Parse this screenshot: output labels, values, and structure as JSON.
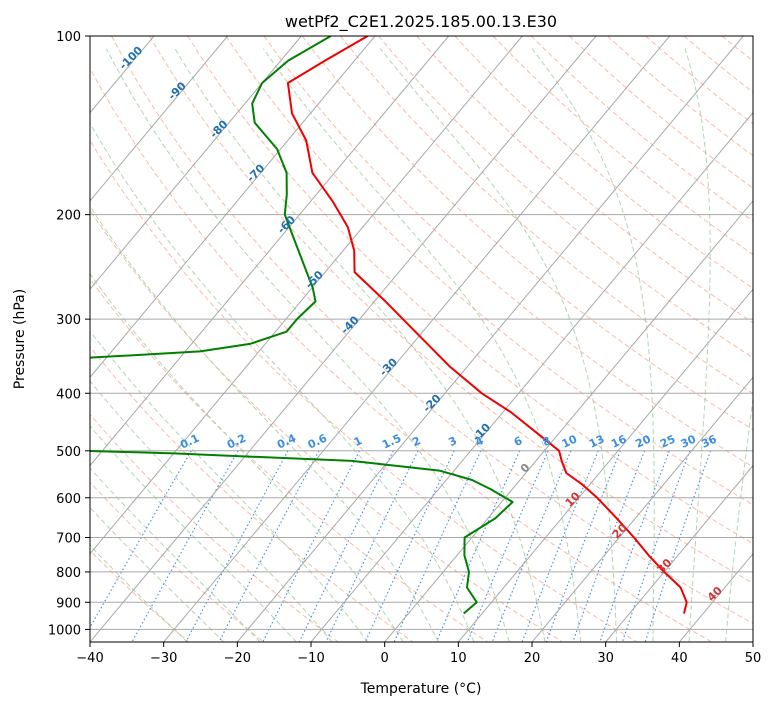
{
  "chart_data": {
    "type": "line",
    "subtype": "skew-t log-p diagram",
    "title": "wetPf2_C2E1.2025.185.00.13.E30",
    "xlabel": "Temperature (°C)",
    "ylabel": "Pressure (hPa)",
    "xlim": [
      -40,
      50
    ],
    "ylim": [
      1050,
      100
    ],
    "y_scale": "log",
    "grid": true,
    "x_ticks": [
      -40,
      -30,
      -20,
      -10,
      0,
      10,
      20,
      30,
      40,
      50
    ],
    "y_ticks": [
      100,
      200,
      300,
      400,
      500,
      600,
      700,
      800,
      900,
      1000
    ],
    "series": [
      {
        "color": "#ee0000",
        "points": [
          {
            "p": 940,
            "t": 37.4
          },
          {
            "p": 900,
            "t": 36.5
          },
          {
            "p": 850,
            "t": 34.0
          },
          {
            "p": 800,
            "t": 30.0
          },
          {
            "p": 750,
            "t": 26.0
          },
          {
            "p": 700,
            "t": 22.0
          },
          {
            "p": 650,
            "t": 17.5
          },
          {
            "p": 600,
            "t": 12.5
          },
          {
            "p": 570,
            "t": 9.0
          },
          {
            "p": 545,
            "t": 5.5
          },
          {
            "p": 520,
            "t": 3.5
          },
          {
            "p": 500,
            "t": 2.0
          },
          {
            "p": 470,
            "t": -2.5
          },
          {
            "p": 430,
            "t": -9.0
          },
          {
            "p": 400,
            "t": -15.0
          },
          {
            "p": 360,
            "t": -22.5
          },
          {
            "p": 320,
            "t": -30.0
          },
          {
            "p": 280,
            "t": -38.5
          },
          {
            "p": 250,
            "t": -46.0
          },
          {
            "p": 230,
            "t": -48.5
          },
          {
            "p": 210,
            "t": -52.0
          },
          {
            "p": 190,
            "t": -57.0
          },
          {
            "p": 170,
            "t": -63.0
          },
          {
            "p": 150,
            "t": -67.5
          },
          {
            "p": 135,
            "t": -72.5
          },
          {
            "p": 120,
            "t": -76.5
          },
          {
            "p": 110,
            "t": -74.0
          },
          {
            "p": 100,
            "t": -71.0
          }
        ]
      },
      {
        "color": "#008000",
        "points": [
          {
            "p": 940,
            "t": 7.5
          },
          {
            "p": 900,
            "t": 8.0
          },
          {
            "p": 850,
            "t": 5.0
          },
          {
            "p": 800,
            "t": 3.5
          },
          {
            "p": 750,
            "t": 1.0
          },
          {
            "p": 700,
            "t": -1.0
          },
          {
            "p": 650,
            "t": 1.0
          },
          {
            "p": 610,
            "t": 1.5
          },
          {
            "p": 580,
            "t": -3.0
          },
          {
            "p": 560,
            "t": -6.5
          },
          {
            "p": 540,
            "t": -12.0
          },
          {
            "p": 520,
            "t": -25.0
          },
          {
            "p": 505,
            "t": -50.0
          },
          {
            "p": 495,
            "t": -75.0
          },
          {
            "p": 490,
            "t": -85.0
          },
          {
            "p": 372,
            "t": -83.0
          },
          {
            "p": 360,
            "t": -80.0
          },
          {
            "p": 350,
            "t": -75.0
          },
          {
            "p": 340,
            "t": -58.0
          },
          {
            "p": 330,
            "t": -52.0
          },
          {
            "p": 315,
            "t": -48.5
          },
          {
            "p": 300,
            "t": -48.5
          },
          {
            "p": 280,
            "t": -48.0
          },
          {
            "p": 265,
            "t": -50.0
          },
          {
            "p": 250,
            "t": -52.5
          },
          {
            "p": 225,
            "t": -57.0
          },
          {
            "p": 200,
            "t": -62.0
          },
          {
            "p": 185,
            "t": -64.0
          },
          {
            "p": 170,
            "t": -66.5
          },
          {
            "p": 155,
            "t": -70.5
          },
          {
            "p": 140,
            "t": -76.5
          },
          {
            "p": 130,
            "t": -79.0
          },
          {
            "p": 120,
            "t": -80.0
          },
          {
            "p": 110,
            "t": -79.0
          },
          {
            "p": 100,
            "t": -76.0
          }
        ]
      }
    ],
    "dry_adiabat_labels": [
      {
        "text": "-100",
        "p": 110,
        "t": -100
      },
      {
        "text": "-90",
        "p": 125,
        "t": -90
      },
      {
        "text": "-80",
        "p": 145,
        "t": -80
      },
      {
        "text": "-70",
        "p": 172,
        "t": -70
      },
      {
        "text": "-60",
        "p": 210,
        "t": -60
      },
      {
        "text": "-50",
        "p": 260,
        "t": -50
      },
      {
        "text": "-40",
        "p": 310,
        "t": -40
      },
      {
        "text": "-30",
        "p": 365,
        "t": -30
      },
      {
        "text": "-20",
        "p": 420,
        "t": -20
      },
      {
        "text": "-10",
        "p": 470,
        "t": -10
      }
    ],
    "moist_adiabat_labels": [
      {
        "text": "0",
        "p": 540,
        "t": 0
      },
      {
        "text": "10",
        "p": 610,
        "t": 10
      },
      {
        "text": "20",
        "p": 690,
        "t": 20
      },
      {
        "text": "30",
        "p": 790,
        "t": 30
      },
      {
        "text": "40",
        "p": 880,
        "t": 40
      }
    ],
    "mixing_ratio_labels": [
      "0.1",
      "0.2",
      "0.4",
      "0.6",
      "1",
      "1.5",
      "2",
      "3",
      "4",
      "6",
      "8",
      "10",
      "13",
      "16",
      "20",
      "25",
      "30",
      "36"
    ]
  },
  "colors": {
    "temperature": "#ee0000",
    "dewpoint": "#008000",
    "isotherm": "#a8a8a8",
    "dry_adiabat": "#f4a58a",
    "moist_adiabat": "#9dcb9d",
    "mixing_ratio": "#3b8fe0",
    "dry_label": "#1f6fb4",
    "moist_label_cold": "#888888",
    "moist_label_warm": "#d33333",
    "background": "#ffffff"
  }
}
